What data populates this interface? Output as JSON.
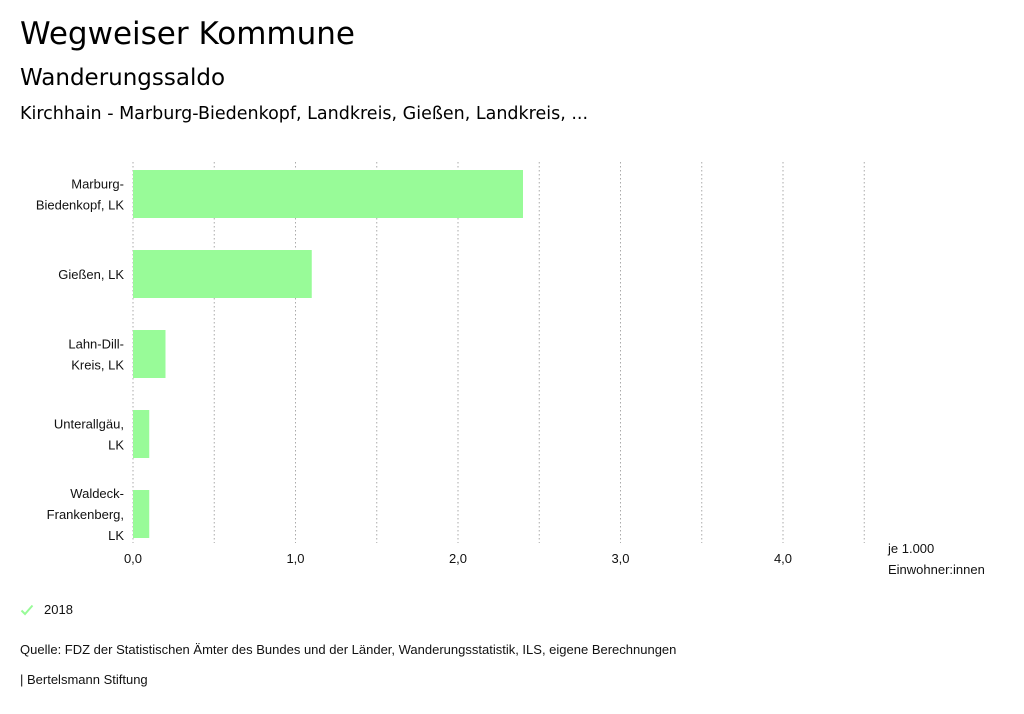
{
  "header": {
    "title": "Wegweiser Kommune",
    "subtitle": "Wanderungssaldo",
    "context": "Kirchhain - Marburg-Biedenkopf, Landkreis, Gießen, Landkreis, ..."
  },
  "unit": {
    "line1": "je 1.000",
    "line2": "Einwohner:innen"
  },
  "legend": {
    "label": "2018",
    "icon": "check-icon"
  },
  "footer": {
    "source": "Quelle: FDZ der Statistischen Ämter des Bundes und der Länder, Wanderungsstatistik, ILS, eigene Berechnungen",
    "credit": "| Bertelsmann Stiftung"
  },
  "colors": {
    "bar": "#98fb98",
    "grid": "#aaaaaa"
  },
  "chart_data": {
    "type": "bar",
    "orientation": "horizontal",
    "categories": [
      [
        "Marburg-",
        "Biedenkopf, LK"
      ],
      [
        "Gießen, LK"
      ],
      [
        "Lahn-Dill-",
        "Kreis, LK"
      ],
      [
        "Unterallgäu,",
        "LK"
      ],
      [
        "Waldeck-",
        "Frankenberg,",
        "LK"
      ]
    ],
    "series": [
      {
        "name": "2018",
        "values": [
          2.4,
          1.1,
          0.2,
          0.1,
          0.1
        ]
      }
    ],
    "xlim": [
      0,
      4.5
    ],
    "xticks": [
      "0,0",
      "1,0",
      "2,0",
      "3,0",
      "4,0"
    ],
    "xtick_values": [
      0,
      1,
      2,
      3,
      4
    ],
    "xlabel": "je 1.000 Einwohner:innen",
    "grid": true,
    "legend_position": "bottom-left"
  }
}
